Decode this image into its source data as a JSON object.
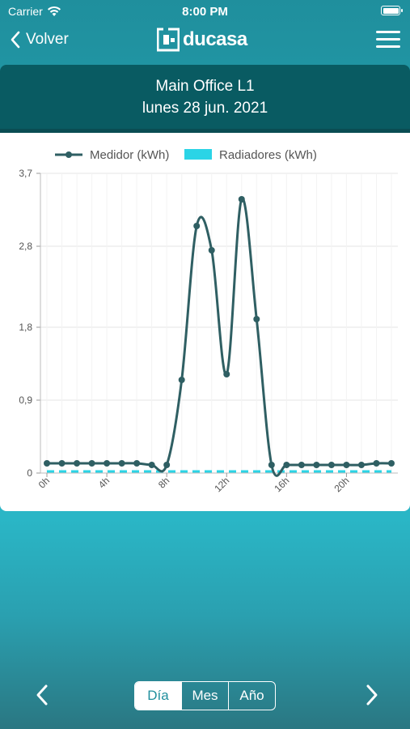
{
  "status_bar": {
    "carrier": "Carrier",
    "time": "8:00 PM"
  },
  "nav": {
    "back_label": "Volver",
    "logo_text": "ducasa",
    "menu_icon": "hamburger-icon"
  },
  "header": {
    "site_name": "Main Office L1",
    "date": "lunes 28 jun. 2021"
  },
  "chart_data": {
    "type": "line",
    "x": [
      0,
      1,
      2,
      3,
      4,
      5,
      6,
      7,
      8,
      9,
      10,
      11,
      12,
      13,
      14,
      15,
      16,
      17,
      18,
      19,
      20,
      21,
      22,
      23
    ],
    "x_tick_labels": [
      "0h",
      "4h",
      "8h",
      "12h",
      "16h",
      "20h"
    ],
    "x_tick_positions": [
      0,
      4,
      8,
      12,
      16,
      20
    ],
    "series": [
      {
        "name": "Medidor (kWh)",
        "color": "#2f5f63",
        "values": [
          0.12,
          0.12,
          0.12,
          0.12,
          0.12,
          0.12,
          0.12,
          0.1,
          0.1,
          1.15,
          3.05,
          2.75,
          1.22,
          3.38,
          1.9,
          0.1,
          0.1,
          0.1,
          0.1,
          0.1,
          0.1,
          0.1,
          0.12,
          0.12
        ]
      },
      {
        "name": "Radiadores (kWh)",
        "color": "#2bd4e6",
        "values": [
          0,
          0,
          0,
          0,
          0,
          0,
          0,
          0,
          0,
          0,
          0,
          0,
          0,
          0,
          0,
          0,
          0,
          0,
          0,
          0,
          0,
          0,
          0,
          0
        ]
      }
    ],
    "y_ticks": [
      0,
      0.9,
      1.8,
      2.8,
      3.7
    ],
    "y_tick_labels": [
      "0",
      "0,9",
      "1,8",
      "2,8",
      "3,7"
    ],
    "ylim": [
      0,
      3.7
    ],
    "xlim": [
      0,
      23
    ],
    "grid": true,
    "legend_position": "top"
  },
  "controls": {
    "prev_icon": "chevron-left-icon",
    "next_icon": "chevron-right-icon",
    "periods": [
      {
        "label": "Día",
        "active": true
      },
      {
        "label": "Mes",
        "active": false
      },
      {
        "label": "Año",
        "active": false
      }
    ]
  }
}
